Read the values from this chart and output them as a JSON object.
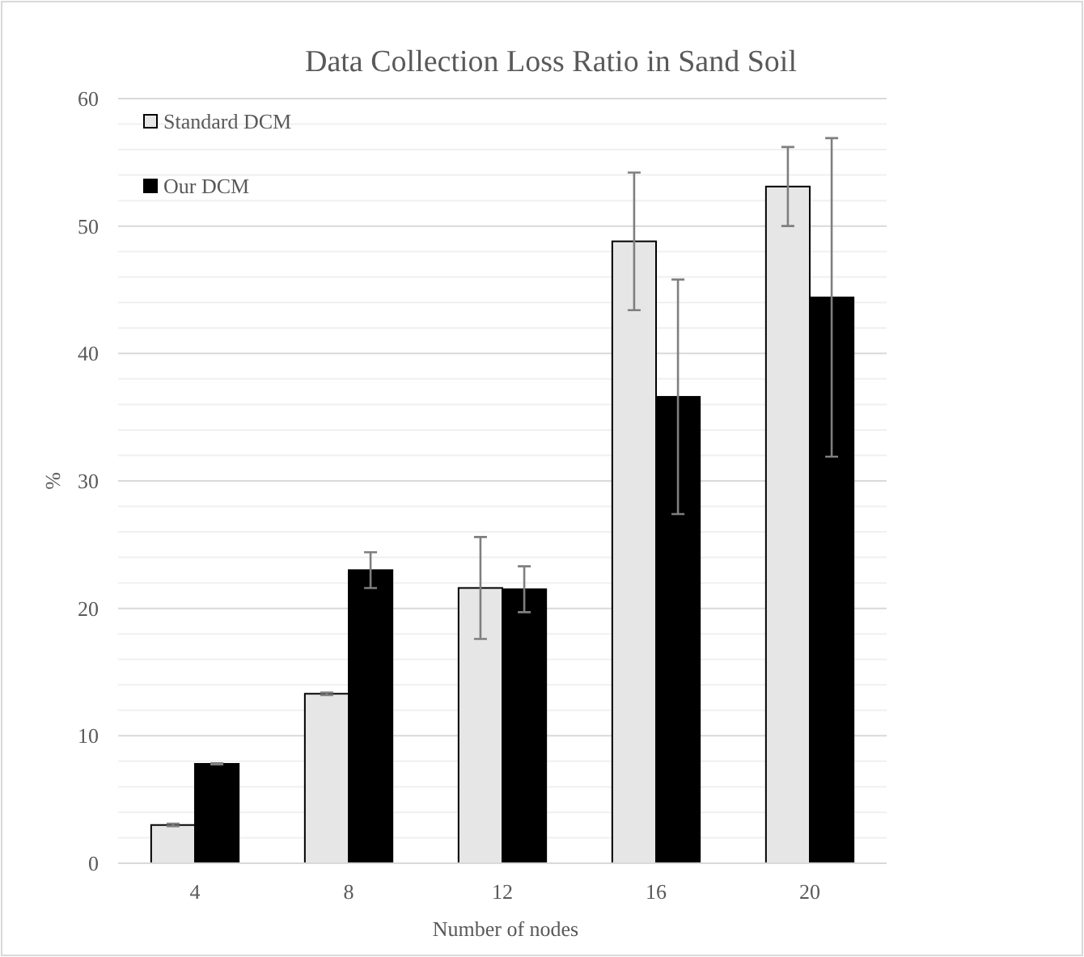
{
  "chart_data": {
    "type": "bar",
    "title": "Data Collection Loss Ratio in Sand Soil",
    "xlabel": "Number of nodes",
    "ylabel": "%",
    "categories": [
      "4",
      "8",
      "12",
      "16",
      "20"
    ],
    "series": [
      {
        "name": "Standard DCM",
        "color": "#e6e6e6",
        "values": [
          3.0,
          13.3,
          21.6,
          48.8,
          53.1
        ],
        "errors": [
          0.1,
          0.1,
          4.0,
          5.4,
          3.1
        ]
      },
      {
        "name": "Our DCM",
        "color": "#000000",
        "values": [
          7.8,
          23.0,
          21.5,
          36.6,
          44.4
        ],
        "errors": [
          0.05,
          1.4,
          1.8,
          9.2,
          12.5
        ]
      }
    ],
    "ylim": [
      0,
      60
    ],
    "yticks": [
      0,
      {
        "value": 2,
        "label": null
      },
      {
        "value": 4,
        "label": null
      },
      {
        "value": 6,
        "label": null
      },
      {
        "value": 8,
        "label": null
      },
      10,
      {
        "value": 12,
        "label": null
      },
      {
        "value": 14,
        "label": null
      },
      {
        "value": 16,
        "label": null
      },
      {
        "value": 18,
        "label": null
      },
      20,
      {
        "value": 22,
        "label": null
      },
      {
        "value": 24,
        "label": null
      },
      {
        "value": 26,
        "label": null
      },
      {
        "value": 28,
        "label": null
      },
      30,
      {
        "value": 32,
        "label": null
      },
      {
        "value": 34,
        "label": null
      },
      {
        "value": 36,
        "label": null
      },
      {
        "value": 38,
        "label": null
      },
      40,
      {
        "value": 42,
        "label": null
      },
      {
        "value": 44,
        "label": null
      },
      {
        "value": 46,
        "label": null
      },
      {
        "value": 48,
        "label": null
      },
      50,
      {
        "value": 52,
        "label": null
      },
      {
        "value": 54,
        "label": null
      },
      {
        "value": 56,
        "label": null
      },
      {
        "value": 58,
        "label": null
      },
      60
    ],
    "grid": "y",
    "legend": "top left"
  }
}
